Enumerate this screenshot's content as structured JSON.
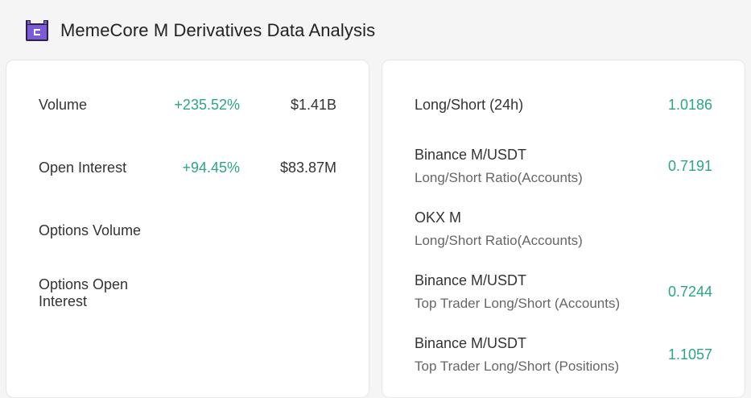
{
  "header": {
    "title": "MemeCore M Derivatives Data Analysis",
    "logo_icon": "memecore-logo-icon"
  },
  "left_panel": {
    "rows": [
      {
        "label": "Volume",
        "change": "+235.52%",
        "value": "$1.41B"
      },
      {
        "label": "Open Interest",
        "change": "+94.45%",
        "value": "$83.87M"
      },
      {
        "label": "Options Volume",
        "change": "",
        "value": ""
      },
      {
        "label": "Options Open Interest",
        "change": "",
        "value": ""
      }
    ]
  },
  "right_panel": {
    "rows": [
      {
        "label": "Long/Short (24h)",
        "sublabel": "",
        "value": "1.0186"
      },
      {
        "label": "Binance M/USDT",
        "sublabel": "Long/Short Ratio(Accounts)",
        "value": "0.7191"
      },
      {
        "label": "OKX M",
        "sublabel": "Long/Short Ratio(Accounts)",
        "value": ""
      },
      {
        "label": "Binance M/USDT",
        "sublabel": "Top Trader Long/Short (Accounts)",
        "value": "0.7244"
      },
      {
        "label": "Binance M/USDT",
        "sublabel": "Top Trader Long/Short (Positions)",
        "value": "1.1057"
      }
    ]
  },
  "colors": {
    "positive": "#2aa586",
    "logo": "#7b5bd6"
  }
}
